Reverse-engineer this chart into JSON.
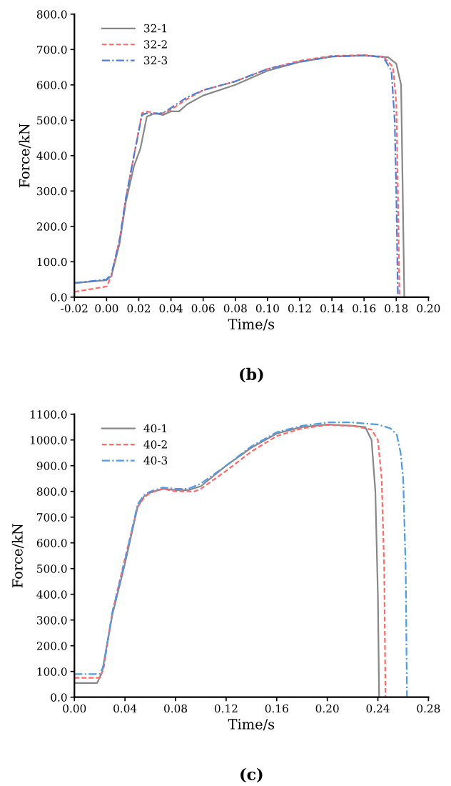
{
  "chart_data": [
    {
      "type": "line",
      "xlabel": "Time/s",
      "ylabel": "Force/kN",
      "annotations": [
        "(b)"
      ],
      "legend": "top left",
      "grid": false,
      "xlim": [
        -0.02,
        0.2
      ],
      "xticks": [
        {
          "value": -0.02,
          "label": "-0.02"
        },
        {
          "value": 0,
          "label": "0.00"
        },
        {
          "value": 0.02,
          "label": "0.02"
        },
        {
          "value": 0.04,
          "label": "0.04"
        },
        {
          "value": 0.06,
          "label": "0.06"
        },
        {
          "value": 0.08,
          "label": "0.08"
        },
        {
          "value": 0.1,
          "label": "0.10"
        },
        {
          "value": 0.12,
          "label": "0.12"
        },
        {
          "value": 0.14,
          "label": "0.14"
        },
        {
          "value": 0.16,
          "label": "0.16"
        },
        {
          "value": 0.18,
          "label": "0.18"
        },
        {
          "value": 0.2,
          "label": "0.20"
        }
      ],
      "ylim": [
        0,
        800
      ],
      "yticks": [
        {
          "value": 0,
          "label": "0.0"
        },
        {
          "value": 100,
          "label": "100.0"
        },
        {
          "value": 200,
          "label": "200.0"
        },
        {
          "value": 300,
          "label": "300.0"
        },
        {
          "value": 400,
          "label": "400.0"
        },
        {
          "value": 500,
          "label": "500.0"
        },
        {
          "value": 600,
          "label": "600.0"
        },
        {
          "value": 700,
          "label": "700.0"
        },
        {
          "value": 800,
          "label": "800.0"
        }
      ],
      "series": [
        {
          "name": "32-1",
          "color": "#888888",
          "line_style": "solid",
          "x": [
            -0.02,
            0,
            0.003,
            0.008,
            0.012,
            0.017,
            0.021,
            0.025,
            0.03,
            0.035,
            0.04,
            0.045,
            0.05,
            0.06,
            0.08,
            0.1,
            0.12,
            0.14,
            0.16,
            0.175,
            0.18,
            0.183,
            0.184,
            0.185
          ],
          "values": [
            40,
            48,
            60,
            150,
            270,
            370,
            420,
            510,
            520,
            515,
            525,
            525,
            545,
            570,
            600,
            640,
            665,
            680,
            683,
            678,
            660,
            600,
            300,
            0
          ]
        },
        {
          "name": "32-2",
          "color": "#ff6b6b",
          "line_style": "dashed",
          "x": [
            -0.02,
            0,
            0.003,
            0.008,
            0.012,
            0.017,
            0.022,
            0.025,
            0.03,
            0.035,
            0.04,
            0.045,
            0.05,
            0.06,
            0.08,
            0.1,
            0.12,
            0.14,
            0.16,
            0.172,
            0.178,
            0.18,
            0.181,
            0.182
          ],
          "values": [
            15,
            30,
            60,
            160,
            280,
            400,
            520,
            525,
            520,
            520,
            530,
            545,
            560,
            585,
            610,
            645,
            668,
            682,
            684,
            680,
            650,
            550,
            300,
            0
          ]
        },
        {
          "name": "32-3",
          "color": "#4f7fd6",
          "line_style": "dashdot",
          "x": [
            -0.02,
            0,
            0.003,
            0.008,
            0.012,
            0.017,
            0.022,
            0.025,
            0.03,
            0.035,
            0.04,
            0.045,
            0.05,
            0.06,
            0.08,
            0.1,
            0.12,
            0.14,
            0.16,
            0.172,
            0.177,
            0.179,
            0.18,
            0.181
          ],
          "values": [
            40,
            50,
            65,
            160,
            280,
            400,
            515,
            520,
            518,
            520,
            535,
            550,
            565,
            585,
            610,
            645,
            665,
            680,
            683,
            678,
            640,
            500,
            300,
            0
          ]
        }
      ]
    },
    {
      "type": "line",
      "xlabel": "Time/s",
      "ylabel": "Force/kN",
      "annotations": [
        "(c)"
      ],
      "legend": "top left",
      "grid": false,
      "xlim": [
        0,
        0.28
      ],
      "xticks": [
        {
          "value": 0,
          "label": "0.00"
        },
        {
          "value": 0.04,
          "label": "0.04"
        },
        {
          "value": 0.08,
          "label": "0.08"
        },
        {
          "value": 0.12,
          "label": "0.12"
        },
        {
          "value": 0.16,
          "label": "0.16"
        },
        {
          "value": 0.2,
          "label": "0.20"
        },
        {
          "value": 0.24,
          "label": "0.24"
        },
        {
          "value": 0.28,
          "label": "0.28"
        }
      ],
      "ylim": [
        0,
        1100
      ],
      "yticks": [
        {
          "value": 0,
          "label": "0.0"
        },
        {
          "value": 100,
          "label": "100.0"
        },
        {
          "value": 200,
          "label": "200.0"
        },
        {
          "value": 300,
          "label": "300.0"
        },
        {
          "value": 400,
          "label": "400.0"
        },
        {
          "value": 500,
          "label": "500.0"
        },
        {
          "value": 600,
          "label": "600.0"
        },
        {
          "value": 700,
          "label": "700.0"
        },
        {
          "value": 800,
          "label": "800.0"
        },
        {
          "value": 900,
          "label": "900.0"
        },
        {
          "value": 1000,
          "label": "1000.0"
        },
        {
          "value": 1100,
          "label": "1100.0"
        }
      ],
      "series": [
        {
          "name": "40-1",
          "color": "#888888",
          "line_style": "solid",
          "x": [
            0,
            0.018,
            0.022,
            0.03,
            0.04,
            0.05,
            0.055,
            0.06,
            0.07,
            0.08,
            0.09,
            0.1,
            0.12,
            0.14,
            0.16,
            0.18,
            0.2,
            0.22,
            0.23,
            0.235,
            0.238,
            0.24,
            0.241
          ],
          "values": [
            55,
            55,
            100,
            320,
            520,
            740,
            780,
            795,
            810,
            805,
            805,
            820,
            900,
            970,
            1025,
            1050,
            1060,
            1055,
            1050,
            1000,
            800,
            400,
            0
          ]
        },
        {
          "name": "40-2",
          "color": "#ff6b6b",
          "line_style": "dashed",
          "x": [
            0,
            0.02,
            0.023,
            0.03,
            0.04,
            0.05,
            0.055,
            0.06,
            0.07,
            0.08,
            0.095,
            0.1,
            0.12,
            0.14,
            0.16,
            0.18,
            0.2,
            0.22,
            0.235,
            0.24,
            0.243,
            0.245,
            0.246
          ],
          "values": [
            75,
            75,
            110,
            330,
            540,
            740,
            775,
            795,
            810,
            800,
            800,
            810,
            880,
            955,
            1015,
            1045,
            1058,
            1055,
            1040,
            1000,
            850,
            500,
            0
          ]
        },
        {
          "name": "40-3",
          "color": "#4f9be6",
          "line_style": "dashdot",
          "x": [
            0,
            0.02,
            0.023,
            0.03,
            0.04,
            0.05,
            0.055,
            0.06,
            0.07,
            0.08,
            0.09,
            0.1,
            0.12,
            0.14,
            0.16,
            0.18,
            0.2,
            0.22,
            0.24,
            0.25,
            0.255,
            0.258,
            0.26,
            0.262,
            0.263
          ],
          "values": [
            90,
            90,
            120,
            330,
            530,
            750,
            785,
            800,
            815,
            810,
            810,
            830,
            900,
            975,
            1030,
            1055,
            1068,
            1068,
            1060,
            1045,
            1020,
            950,
            850,
            500,
            0
          ]
        }
      ]
    }
  ]
}
